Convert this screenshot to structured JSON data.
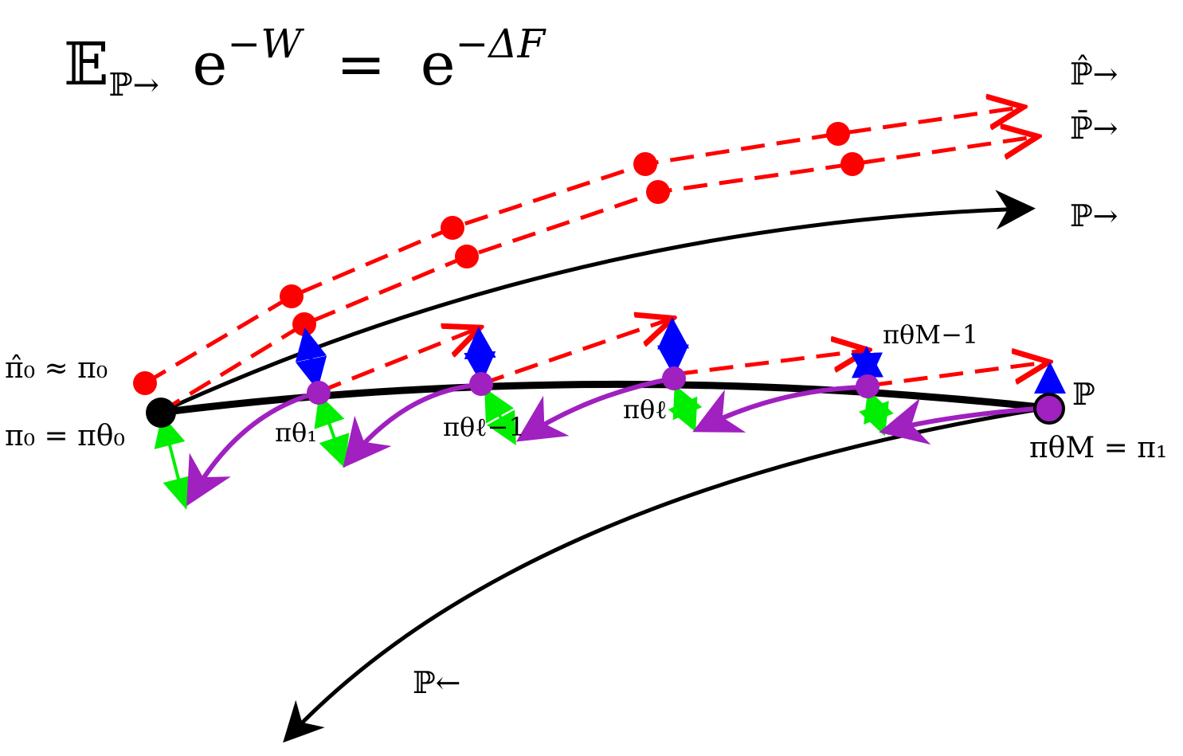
{
  "equation": {
    "lhs_operator": "𝔼",
    "lhs_subscript": "ℙ→",
    "lhs_exp": "e",
    "lhs_exponent": "−W",
    "equals": "=",
    "rhs_exp": "e",
    "rhs_exponent": "−ΔF"
  },
  "path_labels": {
    "p_hat_forward": "ℙ̂→",
    "p_bar_forward": "ℙ̄→",
    "p_forward": "ℙ→",
    "p": "ℙ",
    "p_backward": "ℙ←"
  },
  "point_labels": {
    "pi0_hat": "π̂₀ ≈ π₀",
    "pi0": "π₀ = πθ₀",
    "pi_theta1": "πθ₁",
    "pi_theta_l_minus_1": "πθℓ−1",
    "pi_theta_l": "πθℓ",
    "pi_theta_M_minus_1": "πθM−1",
    "pi_theta_M": "πθM = π₁"
  },
  "colors": {
    "forward_sample_paths": "#ff0000",
    "main_path": "#000000",
    "intermediate_points": "#a020c0",
    "backward_arrows": "#a020c0",
    "blue_arrows": "#0000ff",
    "green_arrows": "#00ee00"
  }
}
